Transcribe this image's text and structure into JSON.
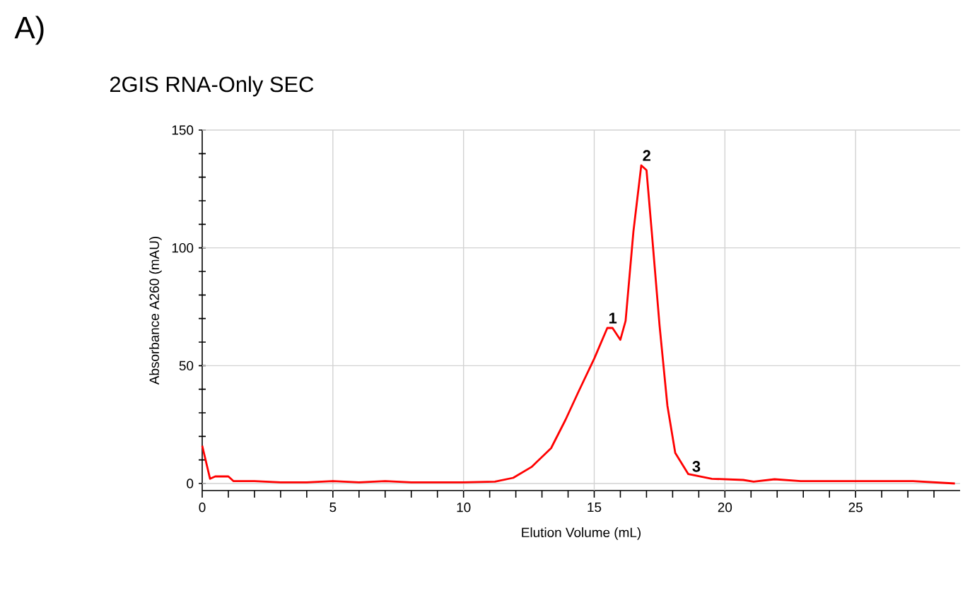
{
  "chart_data": {
    "type": "line",
    "title": "2GIS RNA-Only SEC",
    "xlabel": "Elution Volume (mL)",
    "ylabel": "Absorbance A260 (mAU)",
    "annotations": [
      "A)",
      {
        "text": "1",
        "x": 15.6,
        "y": 66
      },
      {
        "text": "2",
        "x": 16.9,
        "y": 135
      },
      {
        "text": "3",
        "x": 18.8,
        "y": 3
      }
    ],
    "series": [
      {
        "color": "#ff0000",
        "x": [
          0,
          0.3,
          0.5,
          1.0,
          1.2,
          2.0,
          3.0,
          4.0,
          5.0,
          6.0,
          7.0,
          8.0,
          9.0,
          10.0,
          11.2,
          11.9,
          12.6,
          13.35,
          13.9,
          14.4,
          15.0,
          15.5,
          15.7,
          16.0,
          16.2,
          16.5,
          16.8,
          17.0,
          17.2,
          17.5,
          17.8,
          18.1,
          18.6,
          19.5,
          20.7,
          21.1,
          21.9,
          22.9,
          25.4,
          27.2,
          28.8
        ],
        "values": [
          16,
          2,
          3,
          3,
          1,
          1,
          0.5,
          0.5,
          1,
          0.5,
          1,
          0.5,
          0.5,
          0.5,
          0.8,
          2.4,
          7,
          15,
          27,
          39,
          53,
          66,
          66,
          61,
          69,
          107,
          135,
          133,
          107,
          67,
          33,
          13,
          4,
          2,
          1.5,
          0.8,
          1.8,
          1,
          1,
          1,
          0
        ]
      }
    ],
    "xlim": [
      0,
      29
    ],
    "ylim": [
      -3,
      150
    ],
    "xticks": [
      0,
      {
        "value": 1,
        "label": null
      },
      {
        "value": 2,
        "label": null
      },
      {
        "value": 3,
        "label": null
      },
      {
        "value": 4,
        "label": null
      },
      5,
      {
        "value": 6,
        "label": null
      },
      {
        "value": 7,
        "label": null
      },
      {
        "value": 8,
        "label": null
      },
      {
        "value": 9,
        "label": null
      },
      10,
      {
        "value": 11,
        "label": null
      },
      {
        "value": 12,
        "label": null
      },
      {
        "value": 13,
        "label": null
      },
      {
        "value": 14,
        "label": null
      },
      15,
      {
        "value": 16,
        "label": null
      },
      {
        "value": 17,
        "label": null
      },
      {
        "value": 18,
        "label": null
      },
      {
        "value": 19,
        "label": null
      },
      20,
      {
        "value": 21,
        "label": null
      },
      {
        "value": 22,
        "label": null
      },
      {
        "value": 23,
        "label": null
      },
      {
        "value": 24,
        "label": null
      },
      25,
      {
        "value": 26,
        "label": null
      },
      {
        "value": 27,
        "label": null
      },
      {
        "value": 28,
        "label": null
      }
    ],
    "yticks": [
      0,
      {
        "value": 10,
        "label": null
      },
      {
        "value": 20,
        "label": null
      },
      {
        "value": 30,
        "label": null
      },
      {
        "value": 40,
        "label": null
      },
      50,
      {
        "value": 60,
        "label": null
      },
      {
        "value": 70,
        "label": null
      },
      {
        "value": 80,
        "label": null
      },
      {
        "value": 90,
        "label": null
      },
      100,
      {
        "value": 110,
        "label": null
      },
      {
        "value": 120,
        "label": null
      },
      {
        "value": 130,
        "label": null
      },
      {
        "value": 140,
        "label": null
      },
      150
    ],
    "grid": true,
    "marker": "none",
    "line_style": "solid"
  }
}
